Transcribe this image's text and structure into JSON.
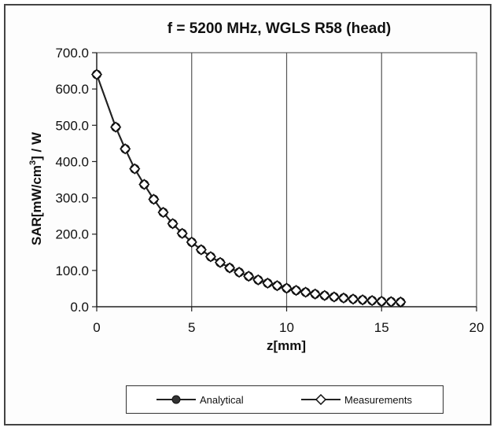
{
  "chart_data": {
    "type": "line",
    "title": "f = 5200 MHz, WGLS R58 (head)",
    "xlabel": "z[mm]",
    "ylabel_prefix": "SAR[mW/cm",
    "ylabel_sup": "3",
    "ylabel_suffix": "] / W",
    "xlim": [
      0,
      20
    ],
    "ylim": [
      0,
      700
    ],
    "x_ticks": [
      0,
      5,
      10,
      15,
      20
    ],
    "x_tick_labels": [
      "0",
      "5",
      "10",
      "15",
      "20"
    ],
    "y_ticks": [
      0,
      100,
      200,
      300,
      400,
      500,
      600,
      700
    ],
    "y_tick_labels": [
      "0.0",
      "100.0",
      "200.0",
      "300.0",
      "400.0",
      "500.0",
      "600.0",
      "700.0"
    ],
    "grid": "vertical major",
    "legend_position": "bottom",
    "series": [
      {
        "name": "Analytical",
        "marker": "filled-circle",
        "color": "#222222",
        "x": [
          0,
          1,
          1.5,
          2,
          2.5,
          3,
          3.5,
          4,
          4.5,
          5,
          5.5,
          6,
          6.5,
          7,
          7.5,
          8,
          8.5,
          9,
          9.5,
          10,
          10.5,
          11,
          11.5,
          12,
          12.5,
          13,
          13.5,
          14,
          14.5,
          15,
          15.5,
          16
        ],
        "y": [
          640,
          495,
          435,
          380,
          337,
          296,
          260,
          229,
          202,
          178,
          157,
          138,
          122,
          107,
          95,
          84,
          74,
          65,
          58,
          51,
          45,
          40,
          35,
          31,
          27,
          24,
          21,
          19,
          17,
          15,
          14,
          13
        ]
      },
      {
        "name": "Measurements",
        "marker": "open-diamond",
        "color": "#222222",
        "x": [
          0,
          1,
          1.5,
          2,
          2.5,
          3,
          3.5,
          4,
          4.5,
          5,
          5.5,
          6,
          6.5,
          7,
          7.5,
          8,
          8.5,
          9,
          9.5,
          10,
          10.5,
          11,
          11.5,
          12,
          12.5,
          13,
          13.5,
          14,
          14.5,
          15,
          15.5,
          16
        ],
        "y": [
          640,
          495,
          435,
          380,
          337,
          296,
          260,
          229,
          202,
          178,
          157,
          138,
          122,
          107,
          95,
          84,
          74,
          65,
          58,
          51,
          45,
          40,
          35,
          31,
          27,
          24,
          21,
          19,
          17,
          15,
          14,
          13
        ]
      }
    ]
  }
}
